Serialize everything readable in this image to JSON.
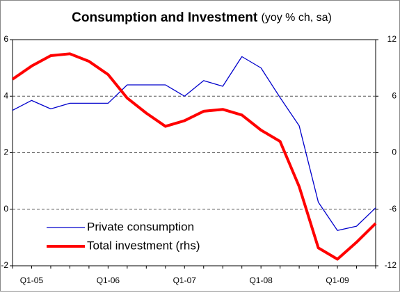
{
  "chart_data": {
    "type": "line",
    "title": "Consumption and Investment",
    "subtitle": "(yoy % ch, sa)",
    "categories": [
      null,
      "Q1-05",
      null,
      null,
      null,
      "Q1-06",
      null,
      null,
      null,
      "Q1-07",
      null,
      null,
      null,
      "Q1-08",
      null,
      null,
      null,
      "Q1-09",
      null,
      null
    ],
    "series": [
      {
        "name": "Private consumption",
        "color": "#0000cc",
        "values": [
          3.5,
          3.85,
          3.55,
          3.75,
          3.75,
          3.75,
          4.4,
          4.4,
          4.4,
          4.0,
          4.55,
          4.35,
          5.4,
          5.0,
          3.95,
          2.95,
          0.25,
          -0.75,
          -0.6,
          0.05
        ]
      },
      {
        "name": "Total investment (rhs)",
        "color": "#ff0000",
        "axis": "y2",
        "values": [
          7.8,
          9.2,
          10.3,
          10.5,
          9.7,
          8.3,
          5.8,
          4.2,
          2.8,
          3.4,
          4.4,
          4.6,
          4.0,
          2.4,
          1.2,
          -3.6,
          -10.1,
          -11.3,
          -9.5,
          -7.5
        ]
      }
    ],
    "ylim": [
      -2,
      6
    ],
    "yticks": [
      -2,
      0,
      2,
      4,
      6
    ],
    "y2lim": [
      -12,
      12
    ],
    "y2ticks": [
      -12,
      -6,
      0,
      6,
      12
    ],
    "grid": true,
    "legend": "lower left"
  }
}
